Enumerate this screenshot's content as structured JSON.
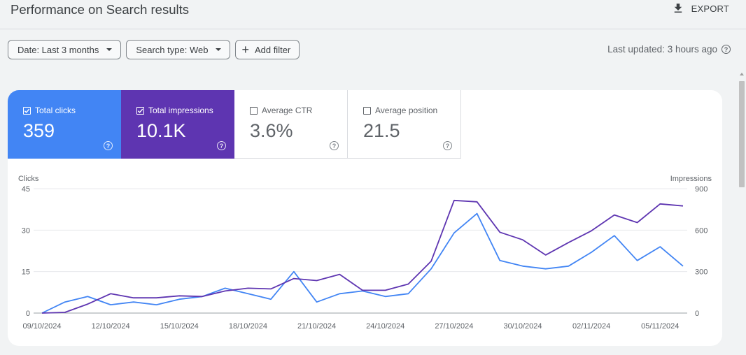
{
  "header": {
    "title": "Performance on Search results",
    "export_label": "EXPORT"
  },
  "filters": [
    {
      "label": "Date: Last 3 months",
      "type": "dropdown"
    },
    {
      "label": "Search type: Web",
      "type": "dropdown"
    },
    {
      "label": "Add filter",
      "type": "add"
    }
  ],
  "last_updated": "Last updated: 3 hours ago",
  "metrics": [
    {
      "label": "Total clicks",
      "value": "359",
      "checked": true,
      "color": "#4285f4"
    },
    {
      "label": "Total impressions",
      "value": "10.1K",
      "checked": true,
      "color": "#5e35b1"
    },
    {
      "label": "Average CTR",
      "value": "3.6%",
      "checked": false
    },
    {
      "label": "Average position",
      "value": "21.5",
      "checked": false
    }
  ],
  "chart_data": {
    "type": "line",
    "ylabel_left": "Clicks",
    "ylabel_right": "Impressions",
    "ylim_left": [
      0,
      45
    ],
    "ylim_right": [
      0,
      900
    ],
    "yticks_left": [
      "0",
      "15",
      "30",
      "45"
    ],
    "yticks_right": [
      "0",
      "300",
      "600",
      "900"
    ],
    "xtick_labels": [
      "09/10/2024",
      "12/10/2024",
      "15/10/2024",
      "18/10/2024",
      "21/10/2024",
      "24/10/2024",
      "27/10/2024",
      "30/10/2024",
      "02/11/2024",
      "05/11/2024"
    ],
    "x": [
      "09/10/2024",
      "10/10/2024",
      "11/10/2024",
      "12/10/2024",
      "13/10/2024",
      "14/10/2024",
      "15/10/2024",
      "16/10/2024",
      "17/10/2024",
      "18/10/2024",
      "19/10/2024",
      "20/10/2024",
      "21/10/2024",
      "22/10/2024",
      "23/10/2024",
      "24/10/2024",
      "25/10/2024",
      "26/10/2024",
      "27/10/2024",
      "28/10/2024",
      "29/10/2024",
      "30/10/2024",
      "31/10/2024",
      "01/11/2024",
      "02/11/2024",
      "03/11/2024",
      "04/11/2024",
      "05/11/2024",
      "06/11/2024"
    ],
    "grid": true,
    "series": [
      {
        "name": "Clicks",
        "axis": "left",
        "color": "#4285f4",
        "values": [
          0,
          4,
          6,
          3,
          4,
          3,
          5,
          6,
          9,
          7,
          5,
          15,
          4,
          7,
          8,
          6,
          7,
          16,
          29,
          36,
          19,
          17,
          16,
          17,
          22,
          28,
          19,
          24,
          17
        ]
      },
      {
        "name": "Impressions",
        "axis": "right",
        "color": "#5e35b1",
        "values": [
          0,
          5,
          65,
          140,
          110,
          110,
          125,
          120,
          160,
          180,
          175,
          250,
          235,
          280,
          165,
          165,
          210,
          375,
          815,
          805,
          585,
          530,
          420,
          510,
          595,
          710,
          655,
          790,
          775
        ]
      }
    ]
  }
}
